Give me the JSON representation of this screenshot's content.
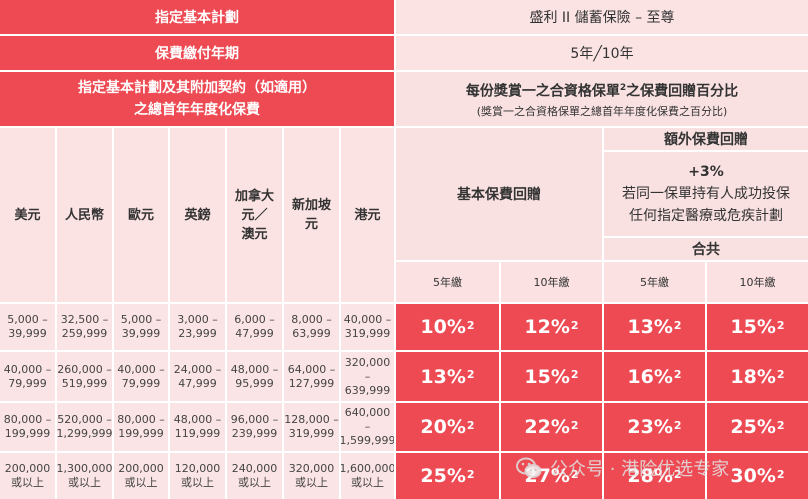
{
  "header": {
    "plan_label": "指定基本計劃",
    "plan_value": "盛利 II 儲蓄保險 – 至尊",
    "term_label": "保費繳付年期",
    "term_value": "5年╱10年",
    "premium_label_1": "指定基本計劃及其附加契約（如適用）",
    "premium_label_2": "之總首年年度化保費",
    "bonus_title": "每份獎賞一之合資格保單",
    "bonus_title_sup": "2",
    "bonus_title_end": "之保費回贈百分比",
    "bonus_subtitle": "(獎賞一之合資格保單之總首年年度化保費之百分比)",
    "basic_rebate": "基本保費回贈",
    "extra_rebate": "額外保費回贈",
    "extra_pct": "+3%",
    "extra_line_1": "若同一保單持有人成功投保",
    "extra_line_2": "任何指定醫療或危疾計劃",
    "total": "合共"
  },
  "currencies": [
    "美元",
    "人民幣",
    "歐元",
    "英鎊",
    "加拿大元／澳元",
    "新加坡元",
    "港元"
  ],
  "currency_lines": [
    [
      "美元"
    ],
    [
      "人民幣"
    ],
    [
      "歐元"
    ],
    [
      "英鎊"
    ],
    [
      "加拿大",
      "元／",
      "澳元"
    ],
    [
      "新加坡",
      "元"
    ],
    [
      "港元"
    ]
  ],
  "term_cols": [
    "5年繳",
    "10年繳",
    "5年繳",
    "10年繳"
  ],
  "rows": [
    {
      "ranges": [
        [
          "5,000 –",
          "39,999"
        ],
        [
          "32,500 –",
          "259,999"
        ],
        [
          "5,000 –",
          "39,999"
        ],
        [
          "3,000 –",
          "23,999"
        ],
        [
          "6,000 –",
          "47,999"
        ],
        [
          "8,000 –",
          "63,999"
        ],
        [
          "40,000 –",
          "319,999"
        ]
      ],
      "pcts": [
        "10%",
        "12%",
        "13%",
        "15%"
      ]
    },
    {
      "ranges": [
        [
          "40,000 –",
          "79,999"
        ],
        [
          "260,000 –",
          "519,999"
        ],
        [
          "40,000 –",
          "79,999"
        ],
        [
          "24,000 –",
          "47,999"
        ],
        [
          "48,000 –",
          "95,999"
        ],
        [
          "64,000 –",
          "127,999"
        ],
        [
          "320,000 –",
          "639,999"
        ]
      ],
      "pcts": [
        "13%",
        "15%",
        "16%",
        "18%"
      ]
    },
    {
      "ranges": [
        [
          "80,000 –",
          "199,999"
        ],
        [
          "520,000 –",
          "1,299,999"
        ],
        [
          "80,000 –",
          "199,999"
        ],
        [
          "48,000 –",
          "119,999"
        ],
        [
          "96,000 –",
          "239,999"
        ],
        [
          "128,000 –",
          "319,999"
        ],
        [
          "640,000 –",
          "1,599,999"
        ]
      ],
      "pcts": [
        "20%",
        "22%",
        "23%",
        "25%"
      ]
    },
    {
      "ranges": [
        [
          "200,000",
          "或以上"
        ],
        [
          "1,300,000",
          "或以上"
        ],
        [
          "200,000",
          "或以上"
        ],
        [
          "120,000",
          "或以上"
        ],
        [
          "240,000",
          "或以上"
        ],
        [
          "320,000",
          "或以上"
        ],
        [
          "1,600,000",
          "或以上"
        ]
      ],
      "pcts": [
        "25%",
        "27%",
        "28%",
        "30%"
      ]
    }
  ],
  "pct_sup": "2",
  "watermark": "公众号 · 港险优选专家",
  "colors": {
    "accent": "#ee4a53",
    "light": "#fbe3e4",
    "text": "#333333"
  }
}
